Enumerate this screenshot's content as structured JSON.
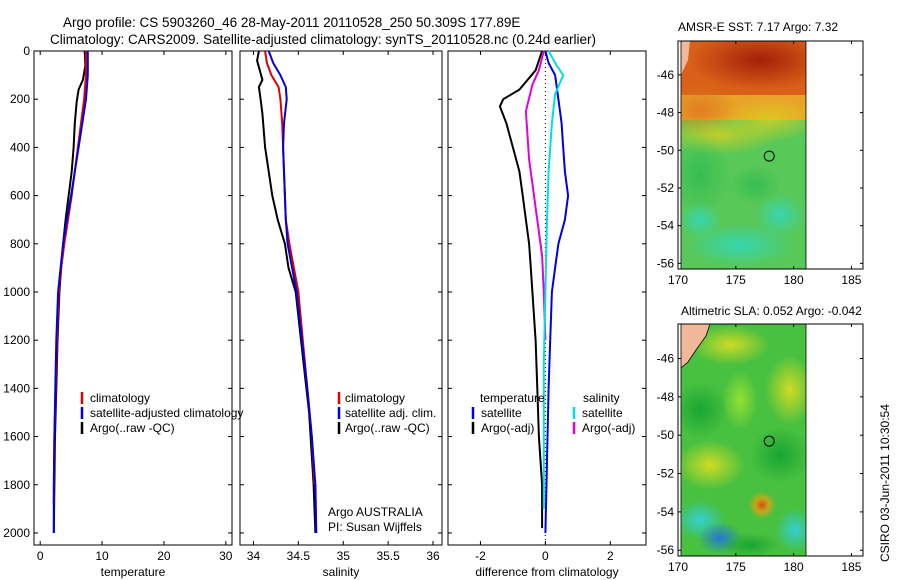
{
  "header": {
    "line1": "Argo profile: CS 5903260_46 28-May-2011 20110528_250 50.309S 177.89E",
    "line2": "Climatology: CARS2009. Satellite-adjusted climatology: synTS_20110528.nc (0.24d earlier)"
  },
  "credit": "CSIRO 03-Jun-2011 10:30:54",
  "colors": {
    "climatology": "#e00000",
    "satellite": "#0000e0",
    "argo": "#000000",
    "salinity_sat": "#00e0e0",
    "salinity_argo": "#e000e0",
    "land": "#f0b898"
  },
  "chart_data": [
    {
      "type": "line",
      "id": "temperature",
      "xlabel": "temperature",
      "xlim": [
        -1,
        31
      ],
      "ylim": [
        2050,
        0
      ],
      "xticks": [
        0,
        10,
        20,
        30
      ],
      "yticks": [
        0,
        200,
        400,
        600,
        800,
        1000,
        1200,
        1400,
        1600,
        1800,
        2000
      ],
      "legend": [
        "climatology",
        "satellite-adjusted climatology",
        "Argo(..raw -QC)"
      ],
      "series": [
        {
          "name": "Argo(..raw -QC)",
          "color": "#000000",
          "x": [
            7.2,
            7.3,
            6.9,
            6.2,
            5.9,
            5.6,
            5.4,
            5.1,
            4.8,
            4.5,
            4.1,
            3.7,
            3.4,
            3.1,
            2.8,
            2.6,
            2.4,
            2.3,
            2.25,
            2.2
          ],
          "y": [
            0,
            60,
            120,
            160,
            210,
            300,
            400,
            500,
            560,
            620,
            700,
            800,
            900,
            1000,
            1200,
            1400,
            1600,
            1800,
            1900,
            2000
          ]
        },
        {
          "name": "climatology",
          "color": "#e00000",
          "x": [
            7.4,
            7.4,
            7.1,
            6.6,
            6.1,
            5.6,
            5.1,
            4.5,
            3.9,
            3.4,
            3.0,
            2.7,
            2.5,
            2.3,
            2.2
          ],
          "y": [
            0,
            100,
            200,
            300,
            400,
            500,
            600,
            700,
            800,
            900,
            1000,
            1200,
            1400,
            1600,
            1880
          ]
        },
        {
          "name": "satellite-adjusted climatology",
          "color": "#0000e0",
          "x": [
            7.7,
            7.7,
            7.4,
            6.8,
            6.2,
            5.6,
            5.0,
            4.3,
            3.7,
            3.3,
            2.9,
            2.6,
            2.45,
            2.3,
            2.2,
            2.2
          ],
          "y": [
            0,
            100,
            200,
            300,
            400,
            500,
            600,
            700,
            800,
            900,
            1000,
            1200,
            1400,
            1600,
            1800,
            2000
          ]
        }
      ]
    },
    {
      "type": "line",
      "id": "salinity",
      "xlabel": "salinity",
      "xlim": [
        33.85,
        36.1
      ],
      "ylim": [
        2050,
        0
      ],
      "xticks": [
        34,
        34.5,
        35,
        35.5,
        36
      ],
      "yticks": [
        0,
        200,
        400,
        600,
        800,
        1000,
        1200,
        1400,
        1600,
        1800,
        2000
      ],
      "legend": [
        "climatology",
        "satellite adj. clim.",
        "Argo(..raw -QC)"
      ],
      "annotation": [
        "Argo AUSTRALIA",
        "PI: Susan Wijffels"
      ],
      "series": [
        {
          "name": "Argo(..raw -QC)",
          "color": "#000000",
          "x": [
            34.06,
            34.04,
            34.07,
            34.1,
            34.06,
            34.08,
            34.1,
            34.13,
            34.17,
            34.21,
            34.27,
            34.35,
            34.39,
            34.47,
            34.53,
            34.62,
            34.67,
            34.69
          ],
          "y": [
            0,
            40,
            80,
            120,
            150,
            200,
            260,
            400,
            500,
            600,
            700,
            800,
            900,
            1000,
            1200,
            1500,
            1800,
            2000
          ]
        },
        {
          "name": "climatology",
          "color": "#e00000",
          "x": [
            34.13,
            34.15,
            34.2,
            34.28,
            34.3,
            34.32,
            34.33,
            34.34,
            34.35,
            34.36,
            34.4,
            34.45,
            34.5,
            34.55,
            34.6,
            34.65,
            34.68
          ],
          "y": [
            0,
            50,
            100,
            150,
            200,
            300,
            400,
            500,
            600,
            700,
            800,
            900,
            1000,
            1200,
            1400,
            1600,
            1800
          ]
        },
        {
          "name": "satellite adj. clim.",
          "color": "#0000e0",
          "x": [
            34.17,
            34.22,
            34.3,
            34.36,
            34.37,
            34.34,
            34.33,
            34.34,
            34.35,
            34.36,
            34.38,
            34.43,
            34.48,
            34.54,
            34.6,
            34.65,
            34.69,
            34.7
          ],
          "y": [
            0,
            50,
            100,
            150,
            200,
            300,
            400,
            500,
            600,
            700,
            800,
            900,
            1000,
            1200,
            1400,
            1600,
            1800,
            2000
          ]
        }
      ]
    },
    {
      "type": "line",
      "id": "difference",
      "xlabel": "difference from climatology",
      "xlim": [
        -3,
        3.1
      ],
      "ylim": [
        2050,
        0
      ],
      "xticks": [
        -2,
        0,
        2
      ],
      "yticks": [
        0,
        200,
        400,
        600,
        800,
        1000,
        1200,
        1400,
        1600,
        1800,
        2000
      ],
      "legend_title_left": "temperature",
      "legend_title_right": "salinity",
      "legend_left": [
        "satellite",
        "Argo(-adj)"
      ],
      "legend_right": [
        "satellite",
        "Argo(-adj)"
      ],
      "series": [
        {
          "name": "temperature Argo(-adj)",
          "color": "#000000",
          "x": [
            -0.1,
            -0.3,
            -0.8,
            -1.3,
            -1.4,
            -1.2,
            -1.0,
            -0.8,
            -0.7,
            -0.6,
            -0.5,
            -0.45,
            -0.4,
            -0.3,
            -0.25,
            -0.2,
            -0.1,
            -0.1,
            -0.1
          ],
          "y": [
            0,
            80,
            160,
            200,
            230,
            300,
            400,
            500,
            600,
            700,
            800,
            900,
            1000,
            1200,
            1400,
            1600,
            1800,
            1900,
            1980
          ]
        },
        {
          "name": "temperature satellite",
          "color": "#0000e0",
          "x": [
            0.0,
            0.1,
            0.3,
            0.4,
            0.5,
            0.55,
            0.6,
            0.7,
            0.6,
            0.4,
            0.3,
            0.2,
            0.15,
            0.1,
            0.05,
            0.0
          ],
          "y": [
            0,
            50,
            100,
            200,
            300,
            400,
            500,
            600,
            700,
            800,
            900,
            1000,
            1200,
            1400,
            1700,
            2000
          ]
        },
        {
          "name": "salinity Argo(-adj)",
          "color": "#e000e0",
          "x": [
            -0.05,
            -0.2,
            -0.4,
            -0.6,
            -0.55,
            -0.5,
            -0.4,
            -0.3,
            -0.2,
            -0.1,
            -0.05,
            0.0
          ],
          "y": [
            0,
            80,
            140,
            250,
            350,
            450,
            550,
            650,
            750,
            850,
            1000,
            1200
          ]
        },
        {
          "name": "salinity satellite",
          "color": "#00e0e0",
          "x": [
            0.1,
            0.35,
            0.55,
            0.3,
            0.2,
            0.1,
            0.05,
            0.0,
            -0.05,
            -0.05,
            -0.05
          ],
          "y": [
            0,
            60,
            100,
            180,
            300,
            500,
            700,
            1000,
            1300,
            1600,
            1900
          ]
        }
      ]
    },
    {
      "type": "heatmap",
      "id": "sst_map",
      "title": "AMSR-E SST: 7.17  Argo: 7.32",
      "xlim": [
        170,
        186
      ],
      "ylim": [
        -56.3,
        -44.2
      ],
      "xticks": [
        170,
        175,
        180,
        185
      ],
      "yticks": [
        -46,
        -48,
        -50,
        -52,
        -54,
        -56
      ],
      "marker": {
        "lon": 177.89,
        "lat": -50.309
      }
    },
    {
      "type": "heatmap",
      "id": "sla_map",
      "title": "Altimetric SLA: 0.052  Argo: -0.042",
      "xlim": [
        170,
        186
      ],
      "ylim": [
        -56.3,
        -44.2
      ],
      "xticks": [
        170,
        175,
        180,
        185
      ],
      "yticks": [
        -46,
        -48,
        -50,
        -52,
        -54,
        -56
      ],
      "marker": {
        "lon": 177.89,
        "lat": -50.309
      }
    }
  ]
}
